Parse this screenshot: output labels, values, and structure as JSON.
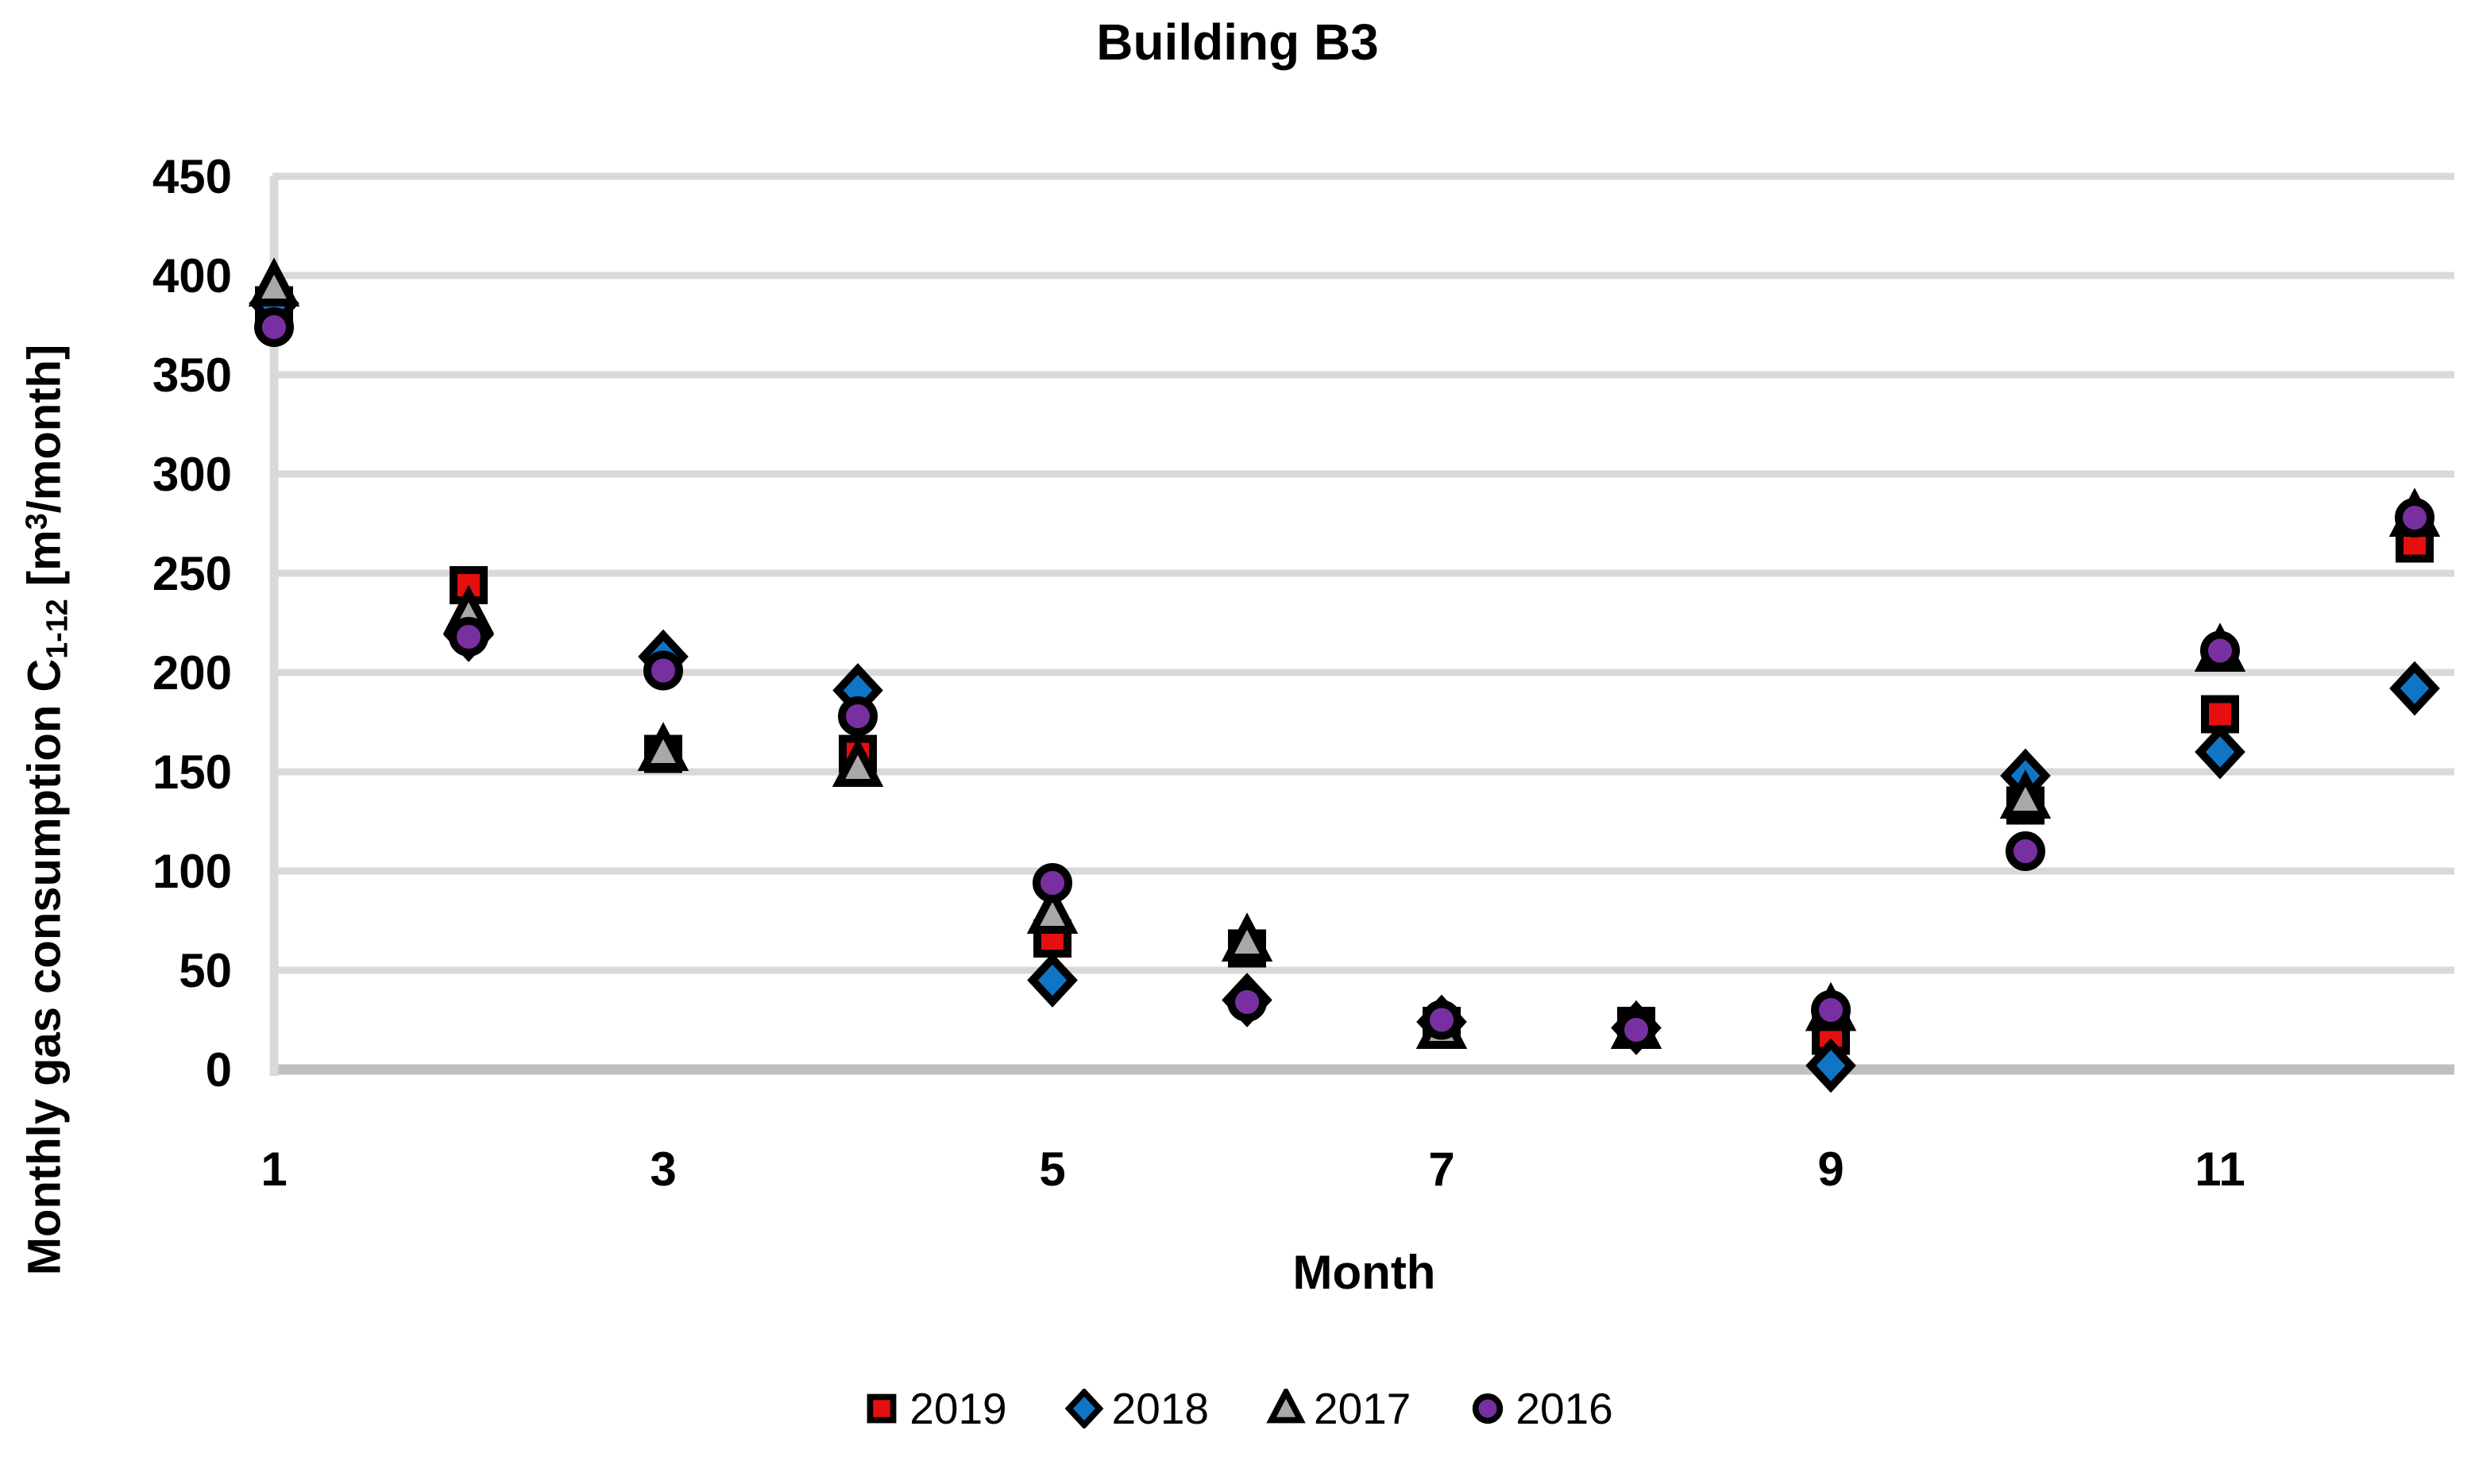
{
  "chart": {
    "title": "Building B3",
    "x_axis_title": "Month",
    "y_axis_title": {
      "prefix": "Monthly gas consumption C",
      "subscript": "1-12",
      "middle": " [m",
      "superscript": "3",
      "suffix": "/month]"
    }
  },
  "chart_data": {
    "type": "scatter",
    "title": "Building B3",
    "xlabel": "Month",
    "ylabel": "Monthly gas consumption C1-12 [m3/month]",
    "x": [
      1,
      2,
      3,
      4,
      5,
      6,
      7,
      8,
      9,
      10,
      11,
      12
    ],
    "series": [
      {
        "name": "2019",
        "marker": "square",
        "color": "#e60f0f",
        "values": [
          385,
          244,
          159,
          159,
          66,
          61,
          22,
          22,
          17,
          133,
          179,
          265
        ]
      },
      {
        "name": "2018",
        "marker": "diamond",
        "color": "#0f75c4",
        "values": [
          386,
          219,
          208,
          191,
          45,
          35,
          24,
          21,
          2,
          148,
          160,
          192
        ]
      },
      {
        "name": "2017",
        "marker": "triangle",
        "color": "#a8a8a8",
        "values": [
          394,
          229,
          160,
          152,
          78,
          64,
          20,
          20,
          29,
          136,
          210,
          278
        ]
      },
      {
        "name": "2016",
        "marker": "circle",
        "color": "#7830a0",
        "values": [
          374,
          218,
          201,
          178,
          94,
          34,
          25,
          20,
          30,
          110,
          211,
          278
        ]
      }
    ],
    "xlim": [
      1,
      12
    ],
    "ylim": [
      0,
      450
    ],
    "x_ticks": [
      1,
      3,
      5,
      7,
      9,
      11
    ],
    "y_ticks": [
      0,
      50,
      100,
      150,
      200,
      250,
      300,
      350,
      400,
      450
    ],
    "grid": "horizontal",
    "gridline_color": "#d9d9d9",
    "axis_line_color": "#bfbfbf",
    "marker_outline_color": "#000000",
    "legend_position": "bottom"
  }
}
